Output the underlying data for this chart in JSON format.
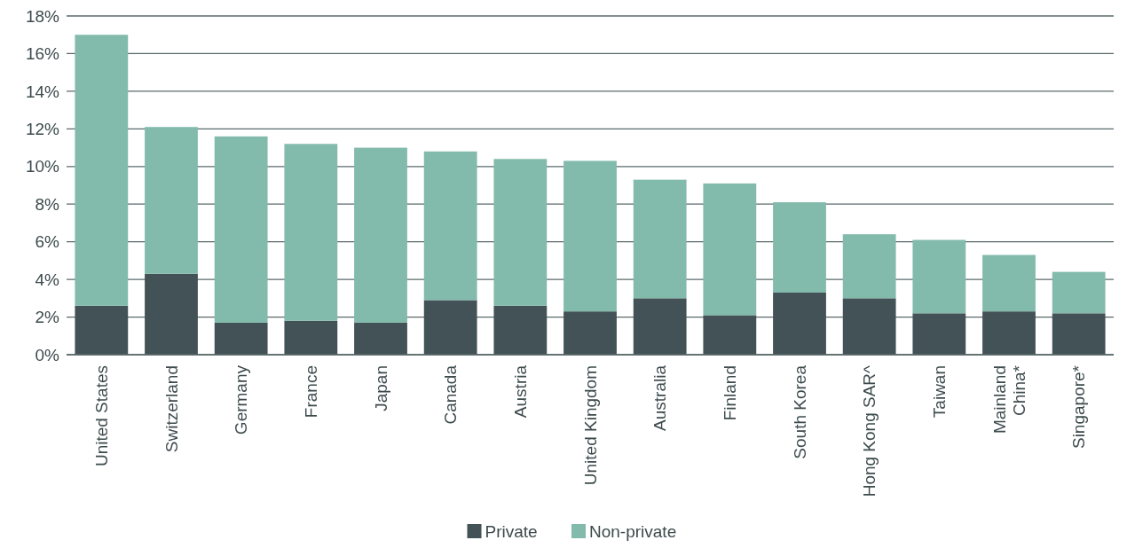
{
  "chart_data": {
    "type": "bar",
    "stacked": true,
    "categories": [
      "United States",
      "Switzerland",
      "Germany",
      "France",
      "Japan",
      "Canada",
      "Austria",
      "United Kingdom",
      "Australia",
      "Finland",
      "South Korea",
      "Hong Kong SAR^",
      "Taiwan",
      "Mainland\nChina*",
      "Singapore*"
    ],
    "series": [
      {
        "name": "Private",
        "color": "#435256",
        "values": [
          2.6,
          4.3,
          1.7,
          1.8,
          1.7,
          2.9,
          2.6,
          2.3,
          3.0,
          2.1,
          3.3,
          3.0,
          2.2,
          2.3,
          2.2
        ]
      },
      {
        "name": "Non-private",
        "color": "#82baac",
        "values": [
          14.4,
          7.8,
          9.9,
          9.4,
          9.3,
          7.9,
          7.8,
          8.0,
          6.3,
          7.0,
          4.8,
          3.4,
          3.9,
          3.0,
          2.2
        ]
      }
    ],
    "ylim": [
      0,
      18
    ],
    "yticks": [
      {
        "value": 0,
        "label": "0%"
      },
      {
        "value": 2,
        "label": "2%"
      },
      {
        "value": 4,
        "label": "4%"
      },
      {
        "value": 6,
        "label": "6%"
      },
      {
        "value": 8,
        "label": "8%"
      },
      {
        "value": 10,
        "label": "10%"
      },
      {
        "value": 12,
        "label": "12%"
      },
      {
        "value": 14,
        "label": "14%"
      },
      {
        "value": 16,
        "label": "16%"
      },
      {
        "value": 18,
        "label": "18%"
      }
    ],
    "grid": "y",
    "legend": "bottom"
  }
}
